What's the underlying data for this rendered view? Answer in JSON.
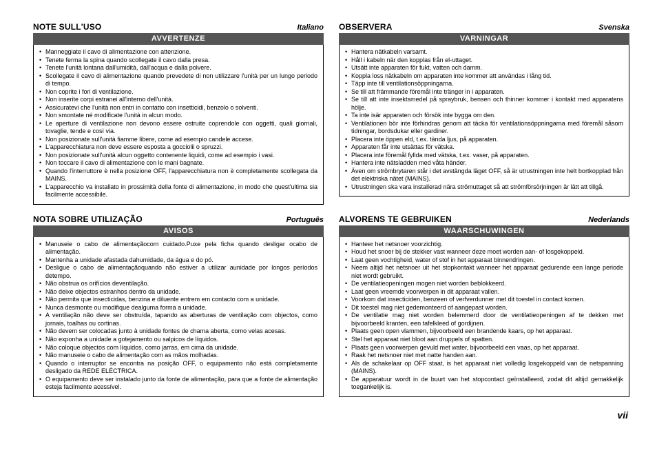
{
  "page_number": "vii",
  "sections": [
    {
      "title": "NOTE SULL'USO",
      "language": "Italiano",
      "banner": "AVVERTENZE",
      "items": [
        "Manneggiate il cavo di alimentazione con attenzione.",
        "Tenete ferma la spina quando scollegate il cavo dalla presa.",
        "Tenete l'unità lontana dall'umidità, dall'acqua e dalla polvere.",
        "Scollegate il cavo di alimentazione quando prevedete di non utilizzare l'unità per un lungo periodo di tempo.",
        "Non coprite i fori di ventilazione.",
        "Non inserite corpi estranei all'interno dell'unità.",
        "Assicuratevi che l'unità non entri in contatto con insetticidi, benzolo o solventi.",
        "Non smontate né modificate l'unità in alcun modo.",
        "Le aperture di ventilazione non devono essere ostruite coprendole con oggetti, quali giornali, tovaglie, tende e così via.",
        "Non posizionate sull'unità fiamme libere, come ad esempio candele accese.",
        "L'apparecchiatura non deve essere esposta a gocciolii o spruzzi.",
        "Non posizionate sull'unità alcun oggetto contenente liquidi, come ad esempio i vasi.",
        "Non toccare il cavo di alimentazione con le mani bagnate.",
        "Quando l'interruttore è nella posizione OFF, l'apparecchiatura non è completamente scollegata da MAINS.",
        "L'apparecchio va installato in prossimità della fonte di alimentazione, in modo che quest'ultima sia facilmente accessibile."
      ]
    },
    {
      "title": "OBSERVERA",
      "language": "Svenska",
      "banner": "VARNINGAR",
      "items": [
        "Hantera nätkabeln varsamt.",
        "Håll i kabeln när den kopplas från el-uttaget.",
        "Utsätt inte apparaten för fukt, vatten och damm.",
        "Koppla loss nätkabeln om apparaten inte kommer att användas i lång tid.",
        "Täpp inte till ventilationsöppningarna.",
        "Se till att främmande föremål inte tränger in i apparaten.",
        "Se till att inte insektsmedel på spraybruk, bensen och thinner kommer i kontakt med apparatens hölje.",
        "Ta inte isär apparaten och försök inte bygga om den.",
        "Ventilationen bör inte förhindras genom att täcka för ventilationsöppningarna med föremål såsom tidningar, bordsdukar eller gardiner.",
        "Placera inte öppen eld, t.ex. tända ljus, på apparaten.",
        "Apparaten får inte utsättas för vätska.",
        "Placera inte föremål fyllda med vätska, t.ex. vaser, på apparaten.",
        "Hantera inte nätsladden med våta händer.",
        "Även om strömbrytaren står i det avstängda läget OFF, så är utrustningen inte helt bortkopplad från det elektriska nätet (MAINS).",
        "Utrustningen ska vara installerad nära strömuttaget så att strömförsörjningen är lätt att tillgå."
      ]
    },
    {
      "title": "NOTA SOBRE UTILIZAÇÃO",
      "language": "Português",
      "banner": "AVISOS",
      "items": [
        "Manuseie o cabo de alimentaçãocom cuidado.Puxe pela ficha quando desligar ocabo de alimentação.",
        "Mantenha a unidade afastada dahumidade, da água e do pó.",
        "Desligue o cabo de alimentaçãoquando não estiver a utilizar aunidade por longos períodos detempo.",
        "Não obstrua os orifícios deventilação.",
        "Não deixe objectos estranhos dentro da unidade.",
        "Não permita que insecticidas, benzina e diluente entrem em contacto com a unidade.",
        "Nunca desmonte ou modifique dealguma forma a unidade.",
        "A ventilação não deve ser obstruída, tapando as aberturas de ventilação com objectos, como jornais, toalhas ou cortinas.",
        "Não devem ser colocadas junto à unidade fontes de chama aberta, como velas acesas.",
        "Não exponha a unidade a gotejamento ou salpicos de líquidos.",
        "Não coloque objectos com líquidos, como jarras, em cima da unidade.",
        "Não manuseie o cabo de alimentação com as mãos molhadas.",
        "Quando o interruptor se encontra na posição OFF, o equipamento não está completamente desligado da REDE ELÉCTRICA.",
        "O equipamento deve ser instalado junto da fonte de alimentação, para que a fonte de alimentação esteja facilmente acessível."
      ]
    },
    {
      "title": "ALVORENS TE GEBRUIKEN",
      "language": "Nederlands",
      "banner": "WAARSCHUWINGEN",
      "items": [
        "Hanteer het netsnoer voorzichtig.",
        "Houd het snoer bij de stekker vast wanneer deze moet worden aan- of losgekoppeld.",
        "Laat geen vochtigheid, water of stof in het apparaat binnendringen.",
        "Neem altijd het netsnoer uit het stopkontakt wanneer het apparaat gedurende een lange periode niet wordt gebruikt.",
        "De ventilatieopeningen mogen niet worden beblokkeerd.",
        "Laat geen vreemde voorwerpen in dit apparaat vallen.",
        "Voorkom dat insecticiden, benzeen of verfverdunner met dit toestel in contact komen.",
        "Dit toestel mag niet gedemonteerd of aangepast worden.",
        "De ventilatie mag niet worden belemmerd door de ventilatieopeningen af te dekken met bijvoorbeeld kranten, een tafelkleed of gordijnen.",
        "Plaats geen open vlammen, bijvoorbeeld een brandende kaars, op het apparaat.",
        "Stel het apparaat niet bloot aan druppels of spatten.",
        "Plaats geen voorwerpen gevuld met water, bijvoorbeeld een vaas, op het apparaat.",
        "Raak het netsnoer niet met natte handen aan.",
        "Als de schakelaar op OFF staat, is het apparaat niet volledig losgekoppeld van de netspanning (MAINS).",
        "De apparatuur wordt in de buurt van het stopcontact geïnstalleerd, zodat dit altijd gemakkelijk toegankelijk is."
      ]
    }
  ]
}
